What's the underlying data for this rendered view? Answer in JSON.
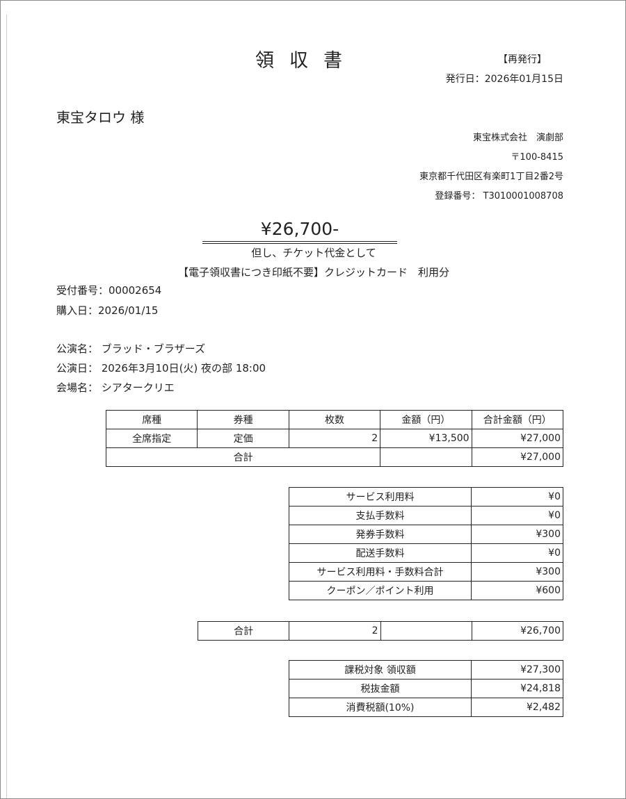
{
  "title": "領収書",
  "reissue": "【再発行】",
  "issue_date": "発行日：2026年01月15日",
  "customer": "東宝タロウ 様",
  "issuer": {
    "company": "東宝株式会社　演劇部",
    "postal": "〒100-8415",
    "address": "東京都千代田区有楽町1丁目2番2号",
    "registration": "登録番号： T3010001008708"
  },
  "amount": "¥26,700-",
  "proviso": "但し、チケット代金として",
  "note": "【電子領収書につき印紙不要】クレジットカード　利用分",
  "reception_no": "受付番号：00002654",
  "purchase_date": "購入日：2026/01/15",
  "performance": {
    "name": "公演名： ブラッド・ブラザーズ",
    "date": "公演日： 2026年3月10日(火) 夜の部 18:00",
    "venue": "会場名： シアタークリエ"
  },
  "tickets": {
    "headers": [
      "席種",
      "券種",
      "枚数",
      "金額（円）",
      "合計金額（円）"
    ],
    "row": [
      "全席指定",
      "定価",
      "2",
      "¥13,500",
      "¥27,000"
    ],
    "total_label": "合計",
    "total_value": "¥27,000"
  },
  "fees": [
    {
      "label": "サービス利用料",
      "value": "¥0"
    },
    {
      "label": "支払手数料",
      "value": "¥0"
    },
    {
      "label": "発券手数料",
      "value": "¥300"
    },
    {
      "label": "配送手数料",
      "value": "¥0"
    },
    {
      "label": "サービス利用料・手数料合計",
      "value": "¥300"
    },
    {
      "label": "クーポン／ポイント利用",
      "value": "¥600"
    }
  ],
  "grand_total": {
    "label": "合計",
    "count": "2",
    "value": "¥26,700"
  },
  "tax": [
    {
      "label": "課税対象 領収額",
      "value": "¥27,300"
    },
    {
      "label": "税抜金額",
      "value": "¥24,818"
    },
    {
      "label": "消費税額(10%)",
      "value": "¥2,482"
    }
  ]
}
